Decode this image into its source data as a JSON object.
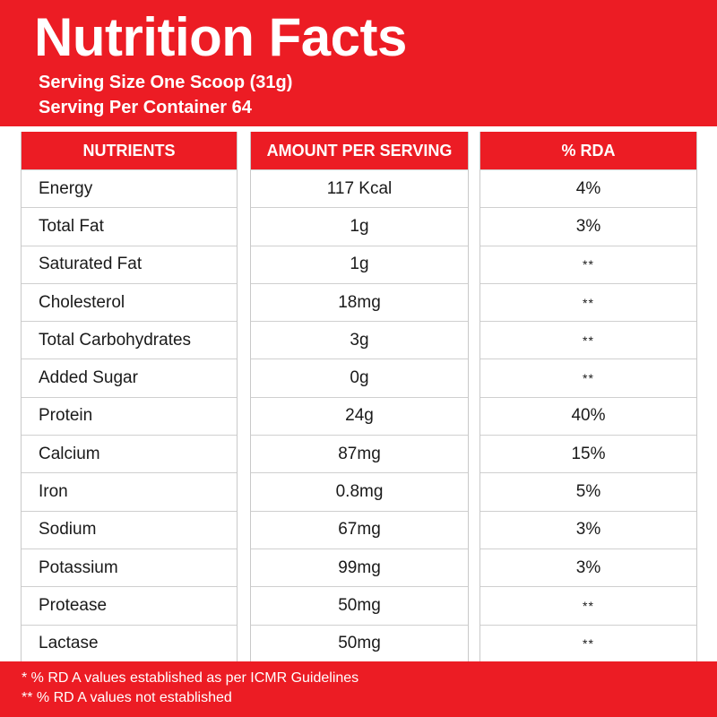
{
  "header": {
    "title": "Nutrition Facts",
    "serving_size": "Serving Size One Scoop (31g)",
    "servings_per_container": "Serving Per Container 64"
  },
  "table": {
    "columns": [
      "NUTRIENTS",
      "AMOUNT PER SERVING",
      "% RDA"
    ],
    "rows": [
      {
        "nutrient": "Energy",
        "amount": "117 Kcal",
        "rda": "4%"
      },
      {
        "nutrient": "Total Fat",
        "amount": "1g",
        "rda": "3%"
      },
      {
        "nutrient": "Saturated Fat",
        "amount": "1g",
        "rda": "**"
      },
      {
        "nutrient": "Cholesterol",
        "amount": "18mg",
        "rda": "**"
      },
      {
        "nutrient": "Total Carbohydrates",
        "amount": "3g",
        "rda": "**"
      },
      {
        "nutrient": "Added Sugar",
        "amount": "0g",
        "rda": "**"
      },
      {
        "nutrient": "Protein",
        "amount": "24g",
        "rda": "40%"
      },
      {
        "nutrient": "Calcium",
        "amount": "87mg",
        "rda": "15%"
      },
      {
        "nutrient": "Iron",
        "amount": "0.8mg",
        "rda": "5%"
      },
      {
        "nutrient": "Sodium",
        "amount": "67mg",
        "rda": "3%"
      },
      {
        "nutrient": "Potassium",
        "amount": "99mg",
        "rda": "3%"
      },
      {
        "nutrient": "Protease",
        "amount": "50mg",
        "rda": "**"
      },
      {
        "nutrient": "Lactase",
        "amount": "50mg",
        "rda": "**"
      }
    ]
  },
  "footer": {
    "note1": "* % RD A values established as per ICMR Guidelines",
    "note2": "** % RD A values not established"
  },
  "colors": {
    "brand_red": "#ec1c24",
    "grid_line": "#cfcfcf",
    "text": "#1a1a1a"
  }
}
